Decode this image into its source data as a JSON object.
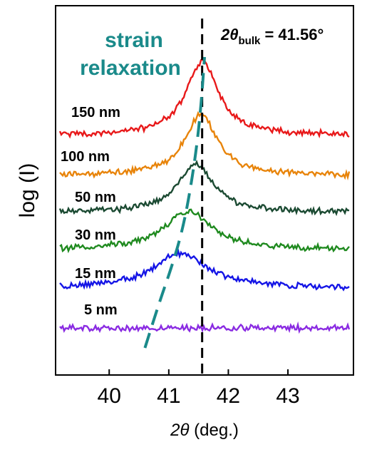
{
  "chart_data": {
    "type": "line",
    "xlabel_symbol": "2θ",
    "xlabel_unit": " (deg.)",
    "ylabel": "log (I)",
    "xlim": [
      39.1,
      44.1
    ],
    "x_ticks": [
      "40",
      "41",
      "42",
      "43"
    ],
    "x_tick_values": [
      40,
      41,
      42,
      43
    ],
    "y_scale": "log",
    "grid": false,
    "legend": "none",
    "reference_line": {
      "x": 41.56,
      "label_prefix": "2θ",
      "label_sub": "bulk",
      "label_value": " = 41.56°",
      "style": "dashed",
      "color": "#000000"
    },
    "annotation": {
      "line1": "strain",
      "line2": "relaxation",
      "color": "#1a8a8a"
    },
    "relaxation_curve": {
      "x": [
        40.6,
        40.85,
        41.05,
        41.22,
        41.35,
        41.47,
        41.55,
        41.6
      ],
      "level": [
        -0.9,
        -0.35,
        0.05,
        0.45,
        0.9,
        1.45,
        2.0,
        2.5
      ],
      "color": "#1a8a8a"
    },
    "series": [
      {
        "name": "150 nm",
        "color": "#e8191a",
        "peak_x": 41.56,
        "peak_height": 1.0,
        "width": 0.33,
        "baseline_level": 0.0
      },
      {
        "name": "100 nm",
        "color": "#e8840a",
        "peak_x": 41.54,
        "peak_height": 0.82,
        "width": 0.33,
        "baseline_level": 0.0
      },
      {
        "name": "50 nm",
        "color": "#1b4a32",
        "peak_x": 41.45,
        "peak_height": 0.65,
        "width": 0.37,
        "baseline_level": 0.0
      },
      {
        "name": "30 nm",
        "color": "#1f8a1f",
        "peak_x": 41.32,
        "peak_height": 0.52,
        "width": 0.48,
        "baseline_level": 0.0
      },
      {
        "name": "15 nm",
        "color": "#1515e6",
        "peak_x": 41.2,
        "peak_height": 0.47,
        "width": 0.55,
        "baseline_level": 0.0
      },
      {
        "name": "5 nm",
        "color": "#8a2be2",
        "peak_x": 41.2,
        "peak_height": 0.0,
        "width": 0.5,
        "baseline_level": 0.0
      }
    ]
  }
}
